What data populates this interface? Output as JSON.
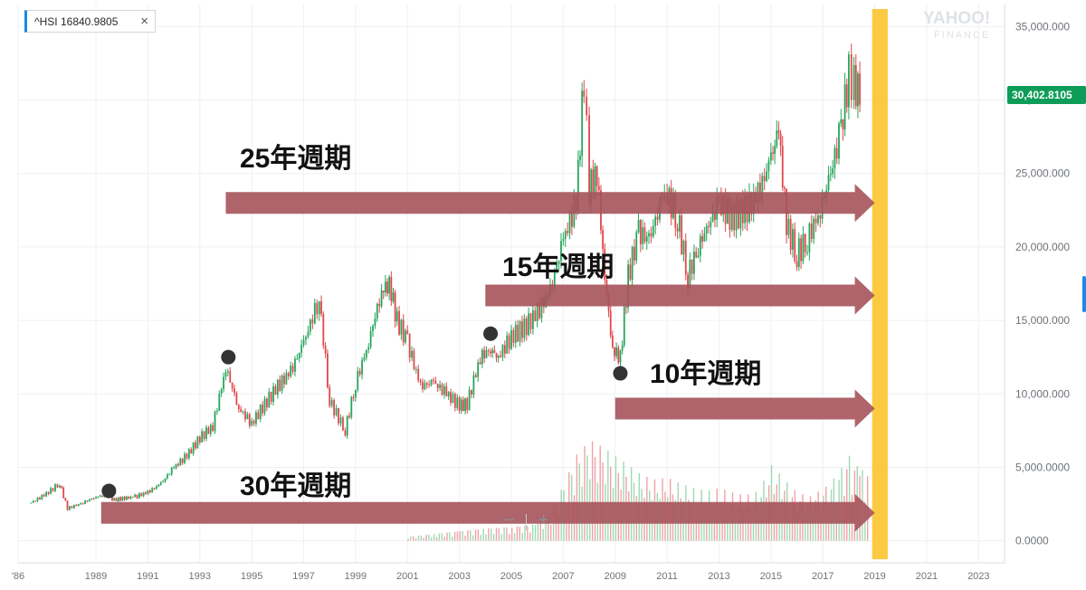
{
  "legend": {
    "ticker": "^HSI 16840.9805",
    "close_symbol": "×"
  },
  "brand": {
    "name": "YAHOO!",
    "sub": "FINANCE"
  },
  "price_tag": "30,402.8105",
  "zoom": {
    "minus": "−",
    "plus": "+"
  },
  "annotations": {
    "cycles": [
      {
        "label": "25年週期",
        "start_year": 1994.0,
        "level": 23000
      },
      {
        "label": "15年週期",
        "start_year": 2004.0,
        "level": 16700
      },
      {
        "label": "10年週期",
        "start_year": 2009.0,
        "level": 9000
      },
      {
        "label": "30年週期",
        "start_year": 1989.2,
        "level": 1900
      }
    ],
    "highlight_band": {
      "from_year": 2018.9,
      "to_year": 2019.5,
      "color": "#fbc531"
    },
    "points": [
      {
        "year": 1989.5,
        "value": 3400
      },
      {
        "year": 1994.1,
        "value": 12500
      },
      {
        "year": 2004.2,
        "value": 14100
      },
      {
        "year": 2009.2,
        "value": 11400
      }
    ],
    "arrow_color": "#a5535a",
    "point_color": "#333333"
  },
  "chart_data": {
    "type": "line",
    "title": "",
    "xlabel": "",
    "ylabel": "",
    "x_ticks": [
      "'86",
      "1989",
      "1991",
      "1993",
      "1995",
      "1997",
      "1999",
      "2001",
      "2003",
      "2005",
      "2007",
      "2009",
      "2011",
      "2013",
      "2015",
      "2017",
      "2019",
      "2021",
      "2023"
    ],
    "y_ticks": [
      "0.0000",
      "5,000.0000",
      "10,000.000",
      "15,000.000",
      "20,000.000",
      "25,000.000",
      "30,000.000",
      "35,000.000"
    ],
    "xlim": [
      1986,
      2024
    ],
    "ylim": [
      -1500,
      36500
    ],
    "grid": true,
    "up_color": "#26a65b",
    "down_color": "#e0474c",
    "series": [
      {
        "x": [
          1986.5,
          1987.0,
          1987.6,
          1987.9,
          1988.5,
          1989.0,
          1989.4,
          1989.7,
          1990.5,
          1991.0,
          1991.5,
          1992.0,
          1992.5,
          1993.0,
          1993.5,
          1994.0,
          1994.5,
          1995.0,
          1995.5,
          1996.0,
          1996.5,
          1997.0,
          1997.6,
          1998.0,
          1998.6,
          1999.0,
          1999.5,
          2000.0,
          2000.3,
          2000.6,
          2001.0,
          2001.5,
          2002.0,
          2002.5,
          2003.0,
          2003.3,
          2003.8,
          2004.2,
          2004.5,
          2005.0,
          2005.5,
          2006.0,
          2006.5,
          2007.0,
          2007.5,
          2007.8,
          2008.0,
          2008.3,
          2008.6,
          2008.9,
          2009.2,
          2009.5,
          2009.9,
          2010.3,
          2010.8,
          2011.0,
          2011.4,
          2011.8,
          2012.2,
          2012.6,
          2013.0,
          2013.5,
          2014.0,
          2014.5,
          2015.0,
          2015.3,
          2015.6,
          2016.0,
          2016.4,
          2016.9,
          2017.3,
          2017.7,
          2018.0,
          2018.2,
          2018.5
        ],
        "values": [
          2600,
          3100,
          3900,
          2200,
          2600,
          3000,
          3100,
          2800,
          3000,
          3300,
          3900,
          5000,
          5800,
          7000,
          7800,
          11800,
          9000,
          8000,
          9300,
          10500,
          11500,
          13500,
          16500,
          9500,
          7500,
          10700,
          13500,
          17000,
          17500,
          15000,
          13500,
          10500,
          10800,
          10000,
          9200,
          9300,
          12500,
          13000,
          12500,
          13900,
          14500,
          15500,
          17000,
          20500,
          23000,
          31500,
          24000,
          25000,
          18000,
          13000,
          12500,
          18000,
          21000,
          20500,
          23200,
          23500,
          22000,
          18000,
          20000,
          21500,
          23000,
          22000,
          22500,
          23500,
          26000,
          28000,
          21500,
          19500,
          20500,
          22500,
          25000,
          28000,
          31800,
          31000,
          30400
        ]
      },
      {
        "name": "Volume",
        "x": [
          2001.0,
          2002.0,
          2003.0,
          2004.0,
          2005.0,
          2006.0,
          2006.5,
          2007.0,
          2007.5,
          2008.0,
          2008.5,
          2009.0,
          2009.5,
          2010.0,
          2010.5,
          2011.0,
          2011.5,
          2012.0,
          2012.5,
          2013.0,
          2013.5,
          2014.0,
          2014.5,
          2015.0,
          2015.5,
          2016.0,
          2016.5,
          2017.0,
          2017.5,
          2018.0,
          2018.4
        ],
        "values": [
          300,
          500,
          700,
          900,
          1000,
          1200,
          2000,
          4000,
          6000,
          7000,
          6500,
          5800,
          5200,
          4500,
          4200,
          4300,
          3900,
          3600,
          3400,
          3600,
          3300,
          3100,
          3400,
          5200,
          4200,
          3300,
          3100,
          3600,
          4500,
          6000,
          5000
        ]
      }
    ]
  }
}
